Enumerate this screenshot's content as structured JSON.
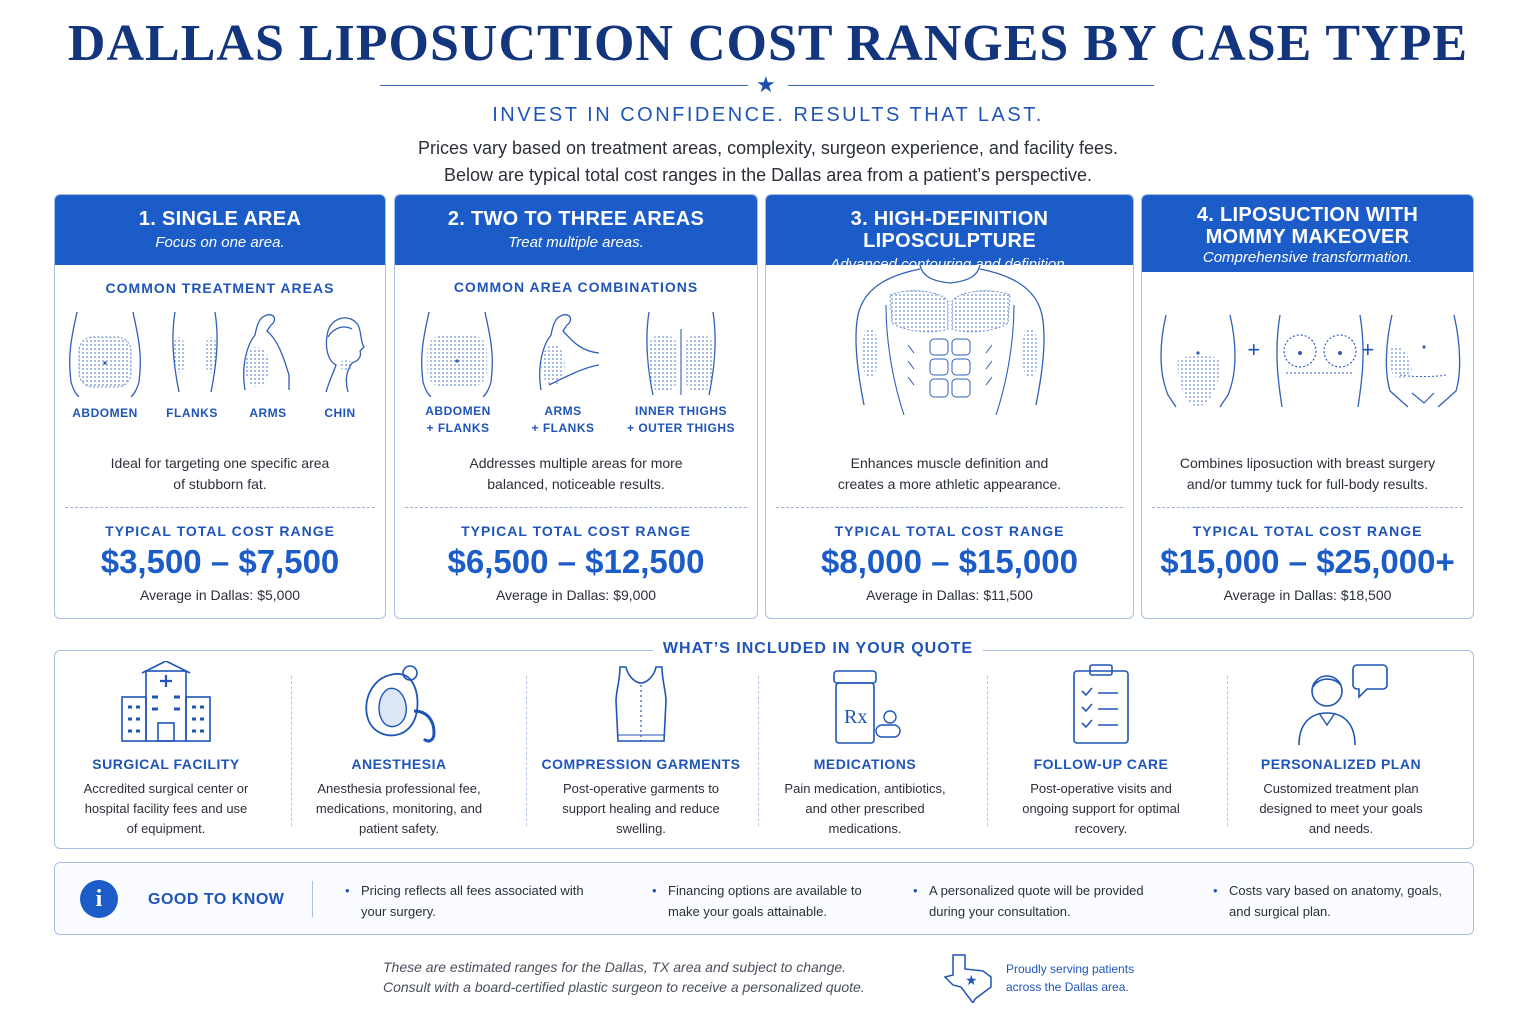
{
  "header": {
    "title": "DALLAS LIPOSUCTION COST RANGES BY CASE TYPE",
    "tagline": "INVEST IN CONFIDENCE. RESULTS THAT LAST.",
    "intro_line1": "Prices vary based on treatment areas, complexity, surgeon experience, and facility fees.",
    "intro_line2": "Below are typical total cost ranges in the Dallas area from a patient’s perspective."
  },
  "cards": [
    {
      "title": "1. SINGLE AREA",
      "subtitle": "Focus on one area.",
      "section_label": "COMMON TREATMENT AREAS",
      "areas": [
        "ABDOMEN",
        "FLANKS",
        "ARMS",
        "CHIN"
      ],
      "description_line1": "Ideal for targeting one specific area",
      "description_line2": "of stubborn fat.",
      "range_label": "TYPICAL TOTAL COST RANGE",
      "range": "$3,500 – $7,500",
      "average": "Average in Dallas: $5,000"
    },
    {
      "title": "2. TWO TO THREE AREAS",
      "subtitle": "Treat multiple areas.",
      "section_label": "COMMON AREA COMBINATIONS",
      "combos": [
        {
          "line1": "ABDOMEN",
          "line2": "+ FLANKS"
        },
        {
          "line1": "ARMS",
          "line2": "+ FLANKS"
        },
        {
          "line1": "INNER THIGHS",
          "line2": "+ OUTER THIGHS"
        }
      ],
      "description_line1": "Addresses multiple areas for more",
      "description_line2": "balanced, noticeable results.",
      "range_label": "TYPICAL TOTAL COST RANGE",
      "range": "$6,500 – $12,500",
      "average": "Average in Dallas: $9,000"
    },
    {
      "title": "3. HIGH-DEFINITION LIPOSCULPTURE",
      "subtitle": "Advanced contouring and definition.",
      "description_line1": "Enhances muscle definition and",
      "description_line2": "creates a more athletic appearance.",
      "range_label": "TYPICAL TOTAL COST RANGE",
      "range": "$8,000 – $15,000",
      "average": "Average in Dallas: $11,500"
    },
    {
      "title_line1": "4. LIPOSUCTION WITH",
      "title_line2": "MOMMY MAKEOVER",
      "subtitle": "Comprehensive transformation.",
      "plus": "+",
      "description_line1": "Combines liposuction with breast surgery",
      "description_line2": "and/or tummy tuck for full-body results.",
      "range_label": "TYPICAL TOTAL COST RANGE",
      "range": "$15,000 – $25,000+",
      "average": "Average in Dallas: $18,500"
    }
  ],
  "included": {
    "title": "WHAT’S INCLUDED IN YOUR QUOTE",
    "items": [
      {
        "name": "SURGICAL FACILITY",
        "icon": "hospital-icon",
        "d1": "Accredited surgical center or",
        "d2": "hospital facility fees and use",
        "d3": "of equipment."
      },
      {
        "name": "ANESTHESIA",
        "icon": "anesthesia-mask-icon",
        "d1": "Anesthesia professional fee,",
        "d2": "medications, monitoring, and",
        "d3": "patient safety."
      },
      {
        "name": "COMPRESSION GARMENTS",
        "icon": "compression-garment-icon",
        "d1": "Post-operative garments to",
        "d2": "support healing and reduce",
        "d3": "swelling."
      },
      {
        "name": "MEDICATIONS",
        "icon": "prescription-bottle-icon",
        "rx": "Rx",
        "d1": "Pain medication, antibiotics,",
        "d2": "and other prescribed",
        "d3": "medications."
      },
      {
        "name": "FOLLOW-UP CARE",
        "icon": "clipboard-checklist-icon",
        "d1": "Post-operative visits and",
        "d2": "ongoing support for optimal",
        "d3": "recovery."
      },
      {
        "name": "PERSONALIZED PLAN",
        "icon": "person-chat-icon",
        "d1": "Customized treatment plan",
        "d2": "designed to meet your goals",
        "d3": "and needs."
      }
    ]
  },
  "good_to_know": {
    "icon_glyph": "i",
    "label": "GOOD TO KNOW",
    "items": [
      {
        "l1": "Pricing reflects all fees associated with",
        "l2": "your surgery."
      },
      {
        "l1": "Financing options are available to",
        "l2": "make your goals attainable."
      },
      {
        "l1": "A personalized quote will be provided",
        "l2": "during your consultation."
      },
      {
        "l1": "Costs vary based on anatomy, goals,",
        "l2": "and surgical plan."
      }
    ]
  },
  "footer": {
    "note_line1": "These are estimated ranges for the Dallas, TX area and subject to change.",
    "note_line2": "Consult with a board-certified plastic surgeon to receive a personalized quote.",
    "serving_line1": "Proudly serving patients",
    "serving_line2": "across the Dallas area."
  },
  "colors": {
    "navy": "#12357d",
    "accent_blue": "#1b5cc8",
    "label_blue": "#1f55b8",
    "border": "#a9bfe3"
  }
}
